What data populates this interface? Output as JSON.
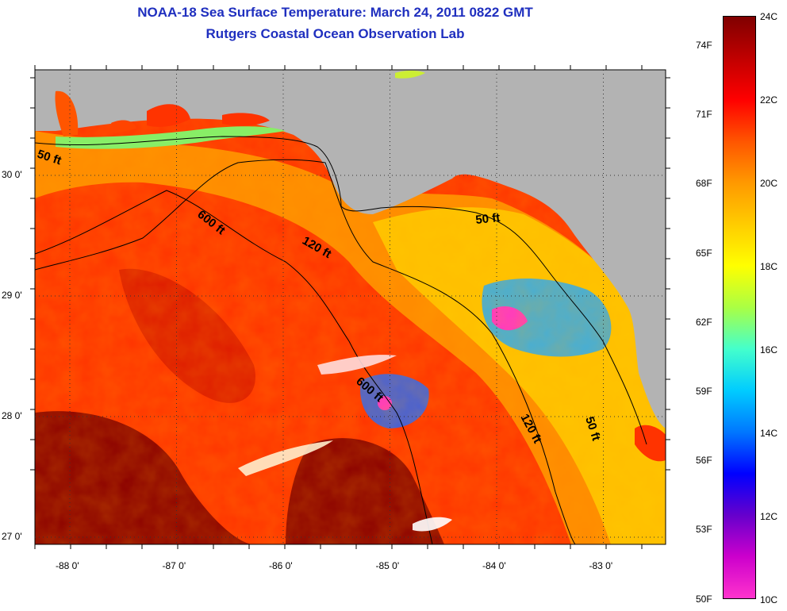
{
  "header": {
    "title": "NOAA-18 Sea Surface Temperature:  March 24, 2011 0822 GMT",
    "subtitle": "Rutgers Coastal Ocean Observation Lab"
  },
  "map": {
    "lat_ticks": [
      "30 0'",
      "29 0'",
      "28 0'",
      "27 0'"
    ],
    "lon_ticks": [
      "-88 0'",
      "-87 0'",
      "-86 0'",
      "-85 0'",
      "-84 0'",
      "-83 0'"
    ],
    "contour_labels": [
      "50 ft",
      "600 ft",
      "120 ft",
      "50 ft",
      "600 ft",
      "120 ft",
      "50 ft"
    ],
    "colors": {
      "land": "#b3b3b3",
      "warm": "#ff2a00",
      "hot": "#8b0000",
      "mid": "#ff9a00",
      "cool": "#ffdd00",
      "cold": "#22aaff",
      "cloud": "#ff33cc"
    }
  },
  "colorbar": {
    "fahrenheit": [
      "74F",
      "71F",
      "68F",
      "65F",
      "62F",
      "59F",
      "56F",
      "53F",
      "50F"
    ],
    "celsius": [
      "24C",
      "22C",
      "20C",
      "18C",
      "16C",
      "14C",
      "12C",
      "10C"
    ],
    "gradient": [
      "#800000",
      "#c00000",
      "#ff0000",
      "#ff5500",
      "#ff9900",
      "#ffcc00",
      "#ffff00",
      "#aaff44",
      "#44ffcc",
      "#00ccff",
      "#0077ff",
      "#0000ff",
      "#6600cc",
      "#cc00cc",
      "#ff33cc"
    ]
  }
}
